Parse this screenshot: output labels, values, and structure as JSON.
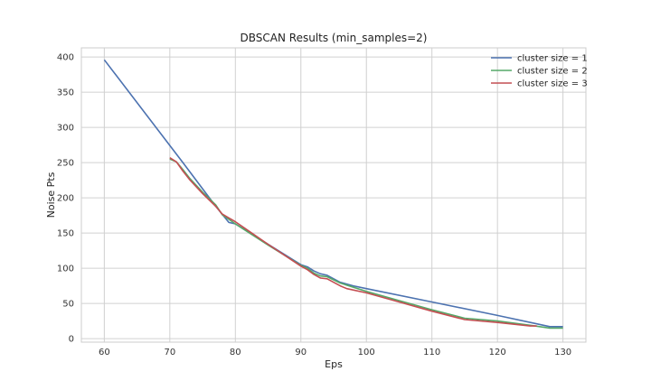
{
  "chart_data": {
    "type": "line",
    "title": "DBSCAN Results (min_samples=2)",
    "xlabel": "Eps",
    "ylabel": "Noise Pts",
    "xlim": [
      56.5,
      133.5
    ],
    "ylim": [
      -5,
      413
    ],
    "xticks": [
      60,
      70,
      80,
      90,
      100,
      110,
      120,
      130
    ],
    "yticks": [
      0,
      50,
      100,
      150,
      200,
      250,
      300,
      350,
      400
    ],
    "grid": true,
    "legend_position": "top-right",
    "series": [
      {
        "name": "cluster size = 1",
        "color": "#4c72b0",
        "x": [
          60,
          72,
          77,
          79,
          80,
          90,
          91,
          92,
          93,
          94,
          96,
          98,
          100,
          110,
          120,
          126,
          128,
          130
        ],
        "y": [
          396,
          250,
          188,
          165,
          163,
          105,
          102,
          96,
          92,
          90,
          80,
          75,
          71,
          52,
          33,
          21,
          17,
          17
        ]
      },
      {
        "name": "cluster size = 2",
        "color": "#55a868",
        "x": [
          70,
          71,
          72,
          73,
          75,
          77,
          78,
          80,
          85,
          90,
          91,
          92,
          93,
          94,
          96,
          97,
          100,
          105,
          110,
          115,
          120,
          125,
          128,
          130
        ],
        "y": [
          255,
          251,
          240,
          228,
          208,
          190,
          176,
          163,
          133,
          104,
          100,
          93,
          89,
          88,
          79,
          76,
          67,
          54,
          41,
          29,
          25,
          19,
          15,
          15
        ]
      },
      {
        "name": "cluster size = 3",
        "color": "#c44e52",
        "x": [
          70,
          71,
          72,
          73,
          75,
          77,
          78,
          80,
          85,
          90,
          91,
          92,
          93,
          94,
          96,
          97,
          100,
          105,
          110,
          115,
          120,
          125,
          126
        ],
        "y": [
          257,
          251,
          238,
          226,
          206,
          188,
          177,
          166,
          134,
          103,
          98,
          91,
          86,
          85,
          75,
          71,
          65,
          52,
          39,
          27,
          23,
          18,
          18
        ]
      }
    ]
  }
}
